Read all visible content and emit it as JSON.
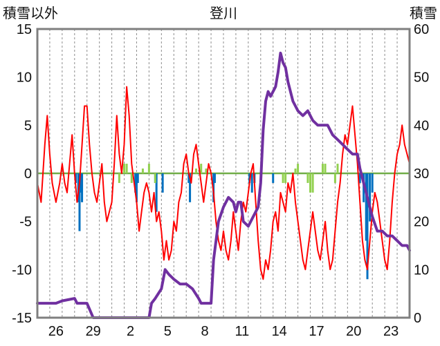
{
  "chart_data": {
    "type": "line",
    "title": "登川",
    "ylabel_left": "積雪以外",
    "ylabel_right": "積雪",
    "ylim_left": [
      -15,
      15
    ],
    "ylim_right": [
      0,
      60
    ],
    "yticks_left": [
      "15",
      "10",
      "5",
      "0",
      "-5",
      "-10",
      "-15"
    ],
    "yticks_right": [
      "60",
      "50",
      "40",
      "30",
      "20",
      "10",
      "0"
    ],
    "xticks": [
      "26",
      "29",
      "2",
      "5",
      "8",
      "11",
      "14",
      "17",
      "20",
      "23"
    ],
    "x_range_days": [
      0,
      30
    ],
    "grid": "vertical dashed",
    "colors": {
      "temperature": "#ff0000",
      "snow_depth": "#7030a0",
      "precip_neg": "#0070c0",
      "precip_pos": "#92d050",
      "zero_line": "#70ad47",
      "frame": "#7f7f7f"
    },
    "series": [
      {
        "role": "temperature",
        "axis": "left",
        "points": [
          [
            0,
            -1
          ],
          [
            0.3,
            -3
          ],
          [
            0.6,
            3
          ],
          [
            0.8,
            6
          ],
          [
            1.0,
            2
          ],
          [
            1.2,
            -1
          ],
          [
            1.5,
            -3
          ],
          [
            1.8,
            -1
          ],
          [
            2.0,
            1
          ],
          [
            2.2,
            -1
          ],
          [
            2.4,
            -2
          ],
          [
            2.6,
            1
          ],
          [
            2.8,
            4
          ],
          [
            3.0,
            0
          ],
          [
            3.2,
            -3
          ],
          [
            3.4,
            -1
          ],
          [
            3.6,
            3
          ],
          [
            3.8,
            7
          ],
          [
            4.0,
            7
          ],
          [
            4.2,
            3
          ],
          [
            4.4,
            0
          ],
          [
            4.6,
            -2
          ],
          [
            4.8,
            -3
          ],
          [
            5.0,
            -1
          ],
          [
            5.2,
            1
          ],
          [
            5.4,
            -3
          ],
          [
            5.6,
            -5
          ],
          [
            5.8,
            -4
          ],
          [
            6.0,
            -3
          ],
          [
            6.2,
            1
          ],
          [
            6.4,
            6
          ],
          [
            6.6,
            2
          ],
          [
            6.8,
            0
          ],
          [
            7.0,
            3
          ],
          [
            7.2,
            9
          ],
          [
            7.4,
            6
          ],
          [
            7.6,
            1
          ],
          [
            7.8,
            -1
          ],
          [
            8.0,
            -3
          ],
          [
            8.2,
            -6
          ],
          [
            8.4,
            -4
          ],
          [
            8.6,
            -2
          ],
          [
            8.8,
            -1
          ],
          [
            9.0,
            -2
          ],
          [
            9.2,
            -4
          ],
          [
            9.4,
            -2
          ],
          [
            9.6,
            -5
          ],
          [
            9.8,
            -4
          ],
          [
            10.0,
            -6
          ],
          [
            10.2,
            -9
          ],
          [
            10.4,
            -7
          ],
          [
            10.6,
            -9
          ],
          [
            10.8,
            -8
          ],
          [
            11.0,
            -5
          ],
          [
            11.2,
            -6
          ],
          [
            11.4,
            -3
          ],
          [
            11.6,
            -2
          ],
          [
            11.8,
            1
          ],
          [
            12.0,
            2
          ],
          [
            12.2,
            0
          ],
          [
            12.4,
            -1
          ],
          [
            12.6,
            2
          ],
          [
            12.8,
            3
          ],
          [
            13.0,
            1
          ],
          [
            13.2,
            -1
          ],
          [
            13.4,
            -3
          ],
          [
            13.6,
            -1
          ],
          [
            13.8,
            1
          ],
          [
            14.0,
            0
          ],
          [
            14.2,
            -2
          ],
          [
            14.4,
            -5
          ],
          [
            14.6,
            -7
          ],
          [
            14.8,
            -8
          ],
          [
            15.0,
            -6
          ],
          [
            15.2,
            -8
          ],
          [
            15.4,
            -9
          ],
          [
            15.6,
            -7
          ],
          [
            15.8,
            -4
          ],
          [
            16.0,
            -6
          ],
          [
            16.2,
            -8
          ],
          [
            16.4,
            -5
          ],
          [
            16.6,
            -3
          ],
          [
            16.8,
            -4
          ],
          [
            17.0,
            -2
          ],
          [
            17.2,
            0
          ],
          [
            17.4,
            1
          ],
          [
            17.6,
            -3
          ],
          [
            17.8,
            -7
          ],
          [
            18.0,
            -10
          ],
          [
            18.2,
            -11
          ],
          [
            18.4,
            -9
          ],
          [
            18.6,
            -10
          ],
          [
            18.8,
            -8
          ],
          [
            19.0,
            -5
          ],
          [
            19.2,
            -4
          ],
          [
            19.4,
            -6
          ],
          [
            19.6,
            -2
          ],
          [
            19.8,
            -3
          ],
          [
            20.0,
            -4
          ],
          [
            20.2,
            -1
          ],
          [
            20.4,
            -2
          ],
          [
            20.6,
            0
          ],
          [
            20.8,
            -3
          ],
          [
            21.0,
            -5
          ],
          [
            21.2,
            -7
          ],
          [
            21.4,
            -9
          ],
          [
            21.6,
            -10
          ],
          [
            21.8,
            -8
          ],
          [
            22.0,
            -6
          ],
          [
            22.2,
            -4
          ],
          [
            22.4,
            -6
          ],
          [
            22.6,
            -8
          ],
          [
            22.8,
            -9
          ],
          [
            23.0,
            -7
          ],
          [
            23.2,
            -5
          ],
          [
            23.4,
            -8
          ],
          [
            23.6,
            -10
          ],
          [
            23.8,
            -9
          ],
          [
            24.0,
            -6
          ],
          [
            24.2,
            -3
          ],
          [
            24.4,
            -1
          ],
          [
            24.6,
            2
          ],
          [
            24.8,
            4
          ],
          [
            25.0,
            3
          ],
          [
            25.2,
            5
          ],
          [
            25.4,
            7
          ],
          [
            25.6,
            4
          ],
          [
            25.8,
            1
          ],
          [
            26.0,
            -3
          ],
          [
            26.2,
            -7
          ],
          [
            26.4,
            -9
          ],
          [
            26.6,
            -10
          ],
          [
            26.8,
            -7
          ],
          [
            27.0,
            -4
          ],
          [
            27.2,
            -2
          ],
          [
            27.4,
            -3
          ],
          [
            27.6,
            -5
          ],
          [
            27.8,
            -7
          ],
          [
            28.0,
            -9
          ],
          [
            28.2,
            -10
          ],
          [
            28.4,
            -7
          ],
          [
            28.6,
            -3
          ],
          [
            28.8,
            0
          ],
          [
            29.0,
            2
          ],
          [
            29.2,
            3
          ],
          [
            29.4,
            5
          ],
          [
            29.6,
            3
          ],
          [
            29.8,
            2
          ],
          [
            30.0,
            1
          ]
        ]
      },
      {
        "role": "snow_depth",
        "axis": "right",
        "points": [
          [
            0,
            3
          ],
          [
            1,
            3
          ],
          [
            1.5,
            3
          ],
          [
            2,
            3.5
          ],
          [
            3,
            4
          ],
          [
            3.2,
            3
          ],
          [
            4,
            3
          ],
          [
            4.5,
            0
          ],
          [
            9,
            0
          ],
          [
            9.2,
            3
          ],
          [
            9.5,
            4
          ],
          [
            10,
            6
          ],
          [
            10.3,
            10
          ],
          [
            10.6,
            9
          ],
          [
            11,
            8
          ],
          [
            11.5,
            7
          ],
          [
            12,
            7
          ],
          [
            12.5,
            6
          ],
          [
            13,
            4
          ],
          [
            13.2,
            3
          ],
          [
            13.5,
            3
          ],
          [
            14,
            3
          ],
          [
            14.2,
            12
          ],
          [
            14.6,
            20
          ],
          [
            15.0,
            23
          ],
          [
            15.4,
            25
          ],
          [
            15.8,
            24
          ],
          [
            16,
            22
          ],
          [
            16.2,
            24
          ],
          [
            16.4,
            24
          ],
          [
            16.6,
            20
          ],
          [
            17.0,
            19
          ],
          [
            17.4,
            21
          ],
          [
            17.8,
            23
          ],
          [
            18,
            28
          ],
          [
            18.2,
            39
          ],
          [
            18.4,
            45
          ],
          [
            18.6,
            47
          ],
          [
            18.8,
            46
          ],
          [
            19.0,
            47
          ],
          [
            19.2,
            48
          ],
          [
            19.4,
            51
          ],
          [
            19.6,
            55
          ],
          [
            19.8,
            53
          ],
          [
            20,
            52
          ],
          [
            20.2,
            49
          ],
          [
            20.6,
            45
          ],
          [
            21.0,
            43
          ],
          [
            21.4,
            42
          ],
          [
            21.8,
            43
          ],
          [
            22.2,
            41
          ],
          [
            22.6,
            40
          ],
          [
            23,
            40
          ],
          [
            23.4,
            40
          ],
          [
            23.8,
            38
          ],
          [
            24.2,
            37
          ],
          [
            24.6,
            36
          ],
          [
            25.0,
            35
          ],
          [
            25.4,
            34
          ],
          [
            25.8,
            34
          ],
          [
            26.0,
            31
          ],
          [
            26.3,
            28
          ],
          [
            26.6,
            25
          ],
          [
            27,
            21
          ],
          [
            27.4,
            18
          ],
          [
            27.8,
            18
          ],
          [
            28.2,
            17
          ],
          [
            28.6,
            17
          ],
          [
            29,
            16
          ],
          [
            29.4,
            15
          ],
          [
            29.8,
            15
          ],
          [
            30,
            14
          ]
        ]
      },
      {
        "role": "precip_neg",
        "axis": "left",
        "points": [
          [
            3.1,
            -1
          ],
          [
            3.3,
            -3
          ],
          [
            3.4,
            -6
          ],
          [
            3.5,
            -2
          ],
          [
            3.6,
            -3
          ],
          [
            7.9,
            -2
          ],
          [
            8.0,
            -3
          ],
          [
            8.1,
            -1
          ],
          [
            9.5,
            -1
          ],
          [
            9.6,
            -4
          ],
          [
            10.1,
            -2
          ],
          [
            12.2,
            -1
          ],
          [
            12.3,
            -3
          ],
          [
            14.2,
            -3
          ],
          [
            14.3,
            -1
          ],
          [
            17.1,
            -1
          ],
          [
            17.3,
            -2
          ],
          [
            17.5,
            -1
          ],
          [
            19.0,
            -1
          ],
          [
            26.0,
            -1
          ],
          [
            26.3,
            -3
          ],
          [
            26.5,
            -7
          ],
          [
            26.6,
            -11
          ],
          [
            26.8,
            -5
          ],
          [
            27.0,
            -2
          ]
        ]
      },
      {
        "role": "precip_pos",
        "axis": "left",
        "points": [
          [
            6.6,
            -1
          ],
          [
            7.0,
            1
          ],
          [
            7.2,
            1
          ],
          [
            7.6,
            -1
          ],
          [
            8.5,
            0.5
          ],
          [
            9.0,
            1
          ],
          [
            9.5,
            -1
          ],
          [
            12.8,
            0.5
          ],
          [
            13.2,
            1
          ],
          [
            13.6,
            0.5
          ],
          [
            19.8,
            -1
          ],
          [
            20.0,
            -1
          ],
          [
            20.8,
            0.5
          ],
          [
            21.0,
            1
          ],
          [
            21.8,
            -1
          ],
          [
            22.0,
            -2
          ],
          [
            22.2,
            -2
          ],
          [
            23.0,
            1
          ],
          [
            23.2,
            1
          ],
          [
            24.0,
            -1
          ],
          [
            24.2,
            1
          ]
        ]
      }
    ]
  }
}
